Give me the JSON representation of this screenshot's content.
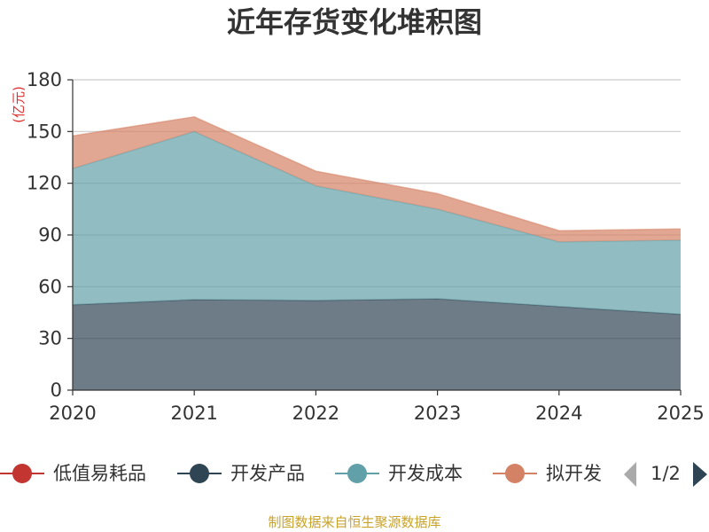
{
  "chart_data": {
    "type": "area",
    "stacked": true,
    "title": "近年存货变化堆积图",
    "y_unit": "(亿元)",
    "categories": [
      "2020",
      "2021",
      "2022",
      "2023",
      "2024",
      "2025"
    ],
    "ylim": [
      0,
      180
    ],
    "yticks": [
      "0",
      "30",
      "60",
      "90",
      "120",
      "150",
      "180"
    ],
    "grid": true,
    "series": [
      {
        "name": "低值易耗品",
        "color": "#c23531",
        "values": [
          0,
          0,
          0,
          0,
          0,
          0
        ]
      },
      {
        "name": "开发产品",
        "color": "#2f4554",
        "values": [
          49.5,
          52.5,
          52,
          53,
          48.5,
          44
        ]
      },
      {
        "name": "开发成本",
        "color": "#61a0a8",
        "values": [
          79,
          97.5,
          66.5,
          52,
          37.5,
          43
        ]
      },
      {
        "name": "拟开发",
        "color": "#d48265",
        "values": [
          19,
          8.5,
          8.5,
          9,
          6.5,
          6.5
        ]
      }
    ],
    "legend": {
      "position": "bottom",
      "page": "1/2"
    }
  },
  "source_text": "制图数据来自恒生聚源数据库"
}
